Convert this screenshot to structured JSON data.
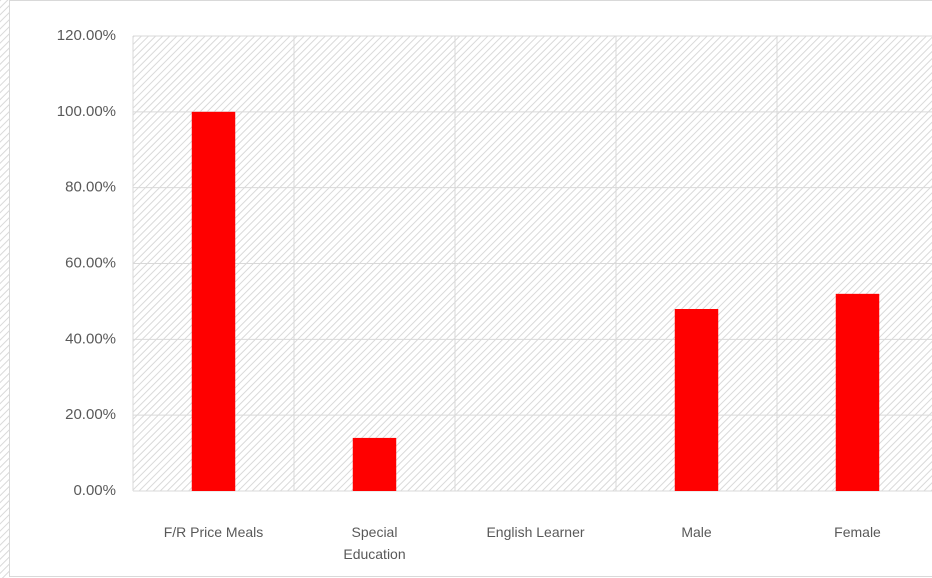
{
  "chart_data": {
    "type": "bar",
    "categories": [
      "F/R Price Meals",
      "Special Education",
      "English Learner",
      "Male",
      "Female"
    ],
    "values": [
      100,
      14,
      0,
      48,
      52
    ],
    "color": "#ff0000",
    "ylim": [
      0,
      120
    ],
    "yticks": [
      {
        "value": 0,
        "label": "0.00%"
      },
      {
        "value": 20,
        "label": "20.00%"
      },
      {
        "value": 40,
        "label": "40.00%"
      },
      {
        "value": 60,
        "label": "60.00%"
      },
      {
        "value": 80,
        "label": "80.00%"
      },
      {
        "value": 100,
        "label": "100.00%"
      },
      {
        "value": 120,
        "label": "120.00%"
      }
    ],
    "grid": true
  }
}
